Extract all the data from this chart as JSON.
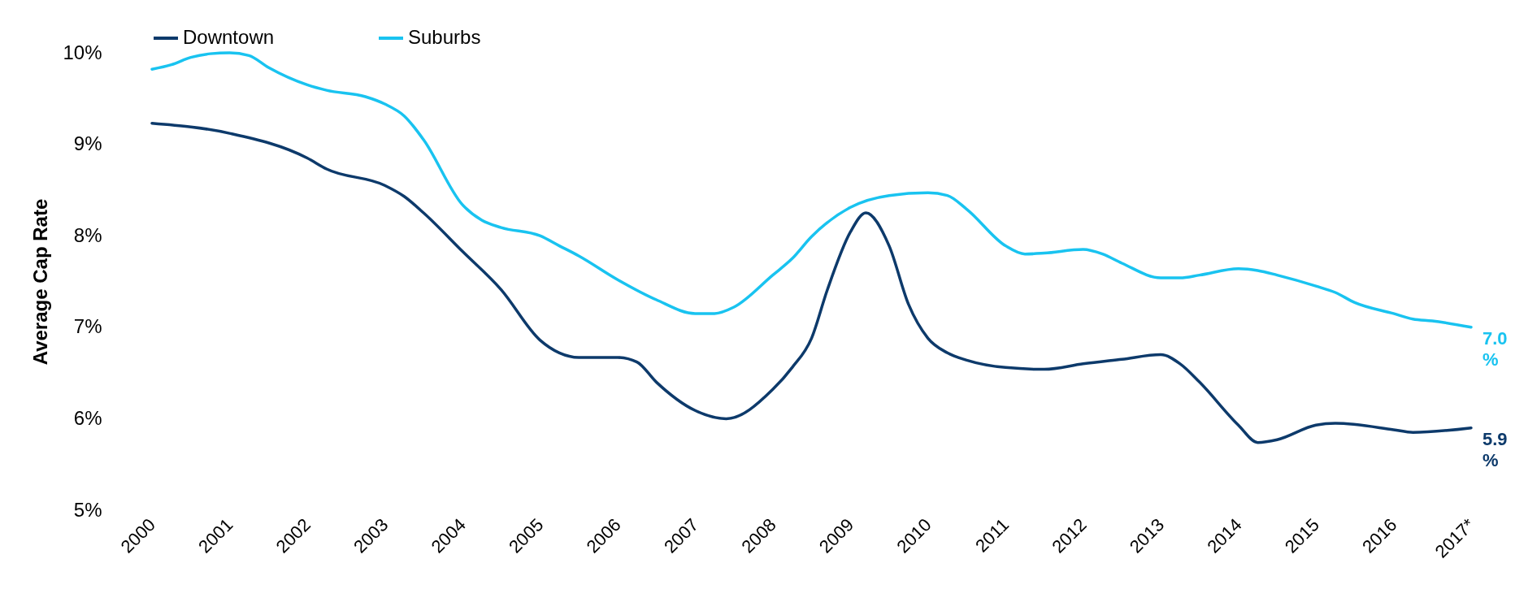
{
  "chart_data": {
    "type": "line",
    "ylabel": "Average Cap Rate",
    "legend": "top",
    "grid": false,
    "line_style": "solid",
    "marker": "none",
    "xlim": [
      2000,
      2017
    ],
    "xticks": [
      2000,
      2001,
      2002,
      2003,
      2004,
      2005,
      2006,
      2007,
      2008,
      2009,
      2010,
      2011,
      2012,
      2013,
      2014,
      2015,
      2016,
      {
        "value": 2017,
        "label": "2017*"
      }
    ],
    "ylim": [
      5,
      10
    ],
    "yticks": [
      {
        "value": 5,
        "label": "5%"
      },
      {
        "value": 6,
        "label": "6%"
      },
      {
        "value": 7,
        "label": "7%"
      },
      {
        "value": 8,
        "label": "8%"
      },
      {
        "value": 9,
        "label": "9%"
      },
      {
        "value": 10,
        "label": "10%"
      }
    ],
    "series": [
      {
        "name": "Downtown",
        "color": "#0d3a6b",
        "x": [
          2000,
          2001,
          2002,
          2002.25,
          2003,
          2003.25,
          2003.5,
          2004,
          2004.5,
          2005,
          2005.25,
          2005.5,
          2006,
          2006.25,
          2006.5,
          2007,
          2007.4,
          2008,
          2008.25,
          2008.5,
          2008.7,
          2009,
          2009.2,
          2009.5,
          2009.75,
          2010,
          2010.25,
          2010.5,
          2011,
          2011.5,
          2012,
          2012.5,
          2013,
          2013.25,
          2013.5,
          2014,
          2014.25,
          2014.5,
          2015,
          2015.25,
          2016,
          2016.25,
          2017
        ],
        "values": [
          9.23,
          9.12,
          8.85,
          8.73,
          8.55,
          8.43,
          8.25,
          7.83,
          7.41,
          6.86,
          6.72,
          6.67,
          6.67,
          6.62,
          6.4,
          6.09,
          6.0,
          6.32,
          6.56,
          6.88,
          7.4,
          8.04,
          8.25,
          7.89,
          7.25,
          6.88,
          6.72,
          6.64,
          6.56,
          6.54,
          6.6,
          6.65,
          6.7,
          6.6,
          6.4,
          5.93,
          5.74,
          5.77,
          5.93,
          5.95,
          5.88,
          5.85,
          5.9
        ]
      },
      {
        "name": "Suburbs",
        "color": "#19c3f0",
        "x": [
          2000,
          2000.25,
          2000.5,
          2000.75,
          2001,
          2001.25,
          2001.5,
          2002,
          2002.25,
          2002.75,
          2003,
          2003.25,
          2003.5,
          2004,
          2004.25,
          2004.5,
          2005,
          2005.25,
          2005.5,
          2006,
          2006.5,
          2007,
          2007.25,
          2007.5,
          2008,
          2008.25,
          2008.5,
          2009,
          2009.5,
          2010,
          2010.25,
          2010.5,
          2011,
          2011.25,
          2011.5,
          2012,
          2012.25,
          2012.5,
          2013,
          2013.25,
          2013.5,
          2014,
          2014.25,
          2014.5,
          2015,
          2015.25,
          2015.5,
          2016,
          2016.25,
          2016.5,
          2017
        ],
        "values": [
          9.82,
          9.87,
          9.95,
          9.99,
          10.0,
          9.97,
          9.84,
          9.65,
          9.59,
          9.52,
          9.44,
          9.31,
          9.05,
          8.34,
          8.17,
          8.09,
          8.0,
          7.89,
          7.78,
          7.52,
          7.3,
          7.15,
          7.15,
          7.22,
          7.57,
          7.75,
          7.99,
          8.31,
          8.44,
          8.47,
          8.44,
          8.29,
          7.89,
          7.8,
          7.81,
          7.85,
          7.8,
          7.7,
          7.54,
          7.54,
          7.57,
          7.64,
          7.62,
          7.57,
          7.45,
          7.38,
          7.27,
          7.15,
          7.09,
          7.07,
          7.0
        ]
      }
    ],
    "annotations": [
      {
        "text": "5.9 %",
        "x": 2017,
        "y": 5.9
      },
      {
        "text": "7.0 %",
        "x": 2017,
        "y": 7.0
      }
    ]
  }
}
